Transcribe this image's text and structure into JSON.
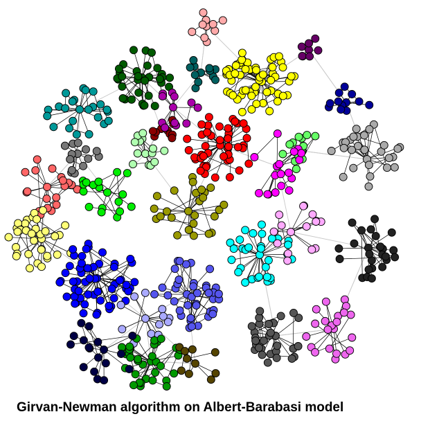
{
  "caption": "Girvan-Newman algorithm on Albert-Barabasi model",
  "graph": {
    "node_stroke": "#000000",
    "inter_edge_color": "#c8c8c8",
    "intra_edge_color": "#000000",
    "communities": [
      {
        "name": "yellow",
        "color": "#ffff00"
      },
      {
        "name": "red",
        "color": "#ff0000"
      },
      {
        "name": "dark-green",
        "color": "#005a00"
      },
      {
        "name": "maroon",
        "color": "#8b0000"
      },
      {
        "name": "magenta-purple",
        "color": "#aa00aa"
      },
      {
        "name": "dark-teal",
        "color": "#006060"
      },
      {
        "name": "teal",
        "color": "#009999"
      },
      {
        "name": "pink",
        "color": "#ffaaaa"
      },
      {
        "name": "plum",
        "color": "#660066"
      },
      {
        "name": "navy",
        "color": "#000099"
      },
      {
        "name": "light-green",
        "color": "#66ff66"
      },
      {
        "name": "magenta",
        "color": "#ff00ff"
      },
      {
        "name": "silver",
        "color": "#aaaaaa"
      },
      {
        "name": "gray",
        "color": "#777777"
      },
      {
        "name": "light-mint",
        "color": "#b0ffb0"
      },
      {
        "name": "salmon",
        "color": "#ff6666"
      },
      {
        "name": "lime-green",
        "color": "#00ee00"
      },
      {
        "name": "pale-yellow",
        "color": "#ffff77"
      },
      {
        "name": "olive",
        "color": "#999900"
      },
      {
        "name": "cyan",
        "color": "#00ffff"
      },
      {
        "name": "lavender-pink",
        "color": "#ffaaff"
      },
      {
        "name": "charcoal",
        "color": "#222222"
      },
      {
        "name": "blue",
        "color": "#0000ff"
      },
      {
        "name": "periwinkle",
        "color": "#5555ee"
      },
      {
        "name": "light-periwinkle",
        "color": "#aaaaff"
      },
      {
        "name": "violet",
        "color": "#ee66ee"
      },
      {
        "name": "dark-gray",
        "color": "#555555"
      },
      {
        "name": "green",
        "color": "#009900"
      },
      {
        "name": "dark-navy",
        "color": "#000044"
      },
      {
        "name": "brown-olive",
        "color": "#554400"
      }
    ]
  }
}
